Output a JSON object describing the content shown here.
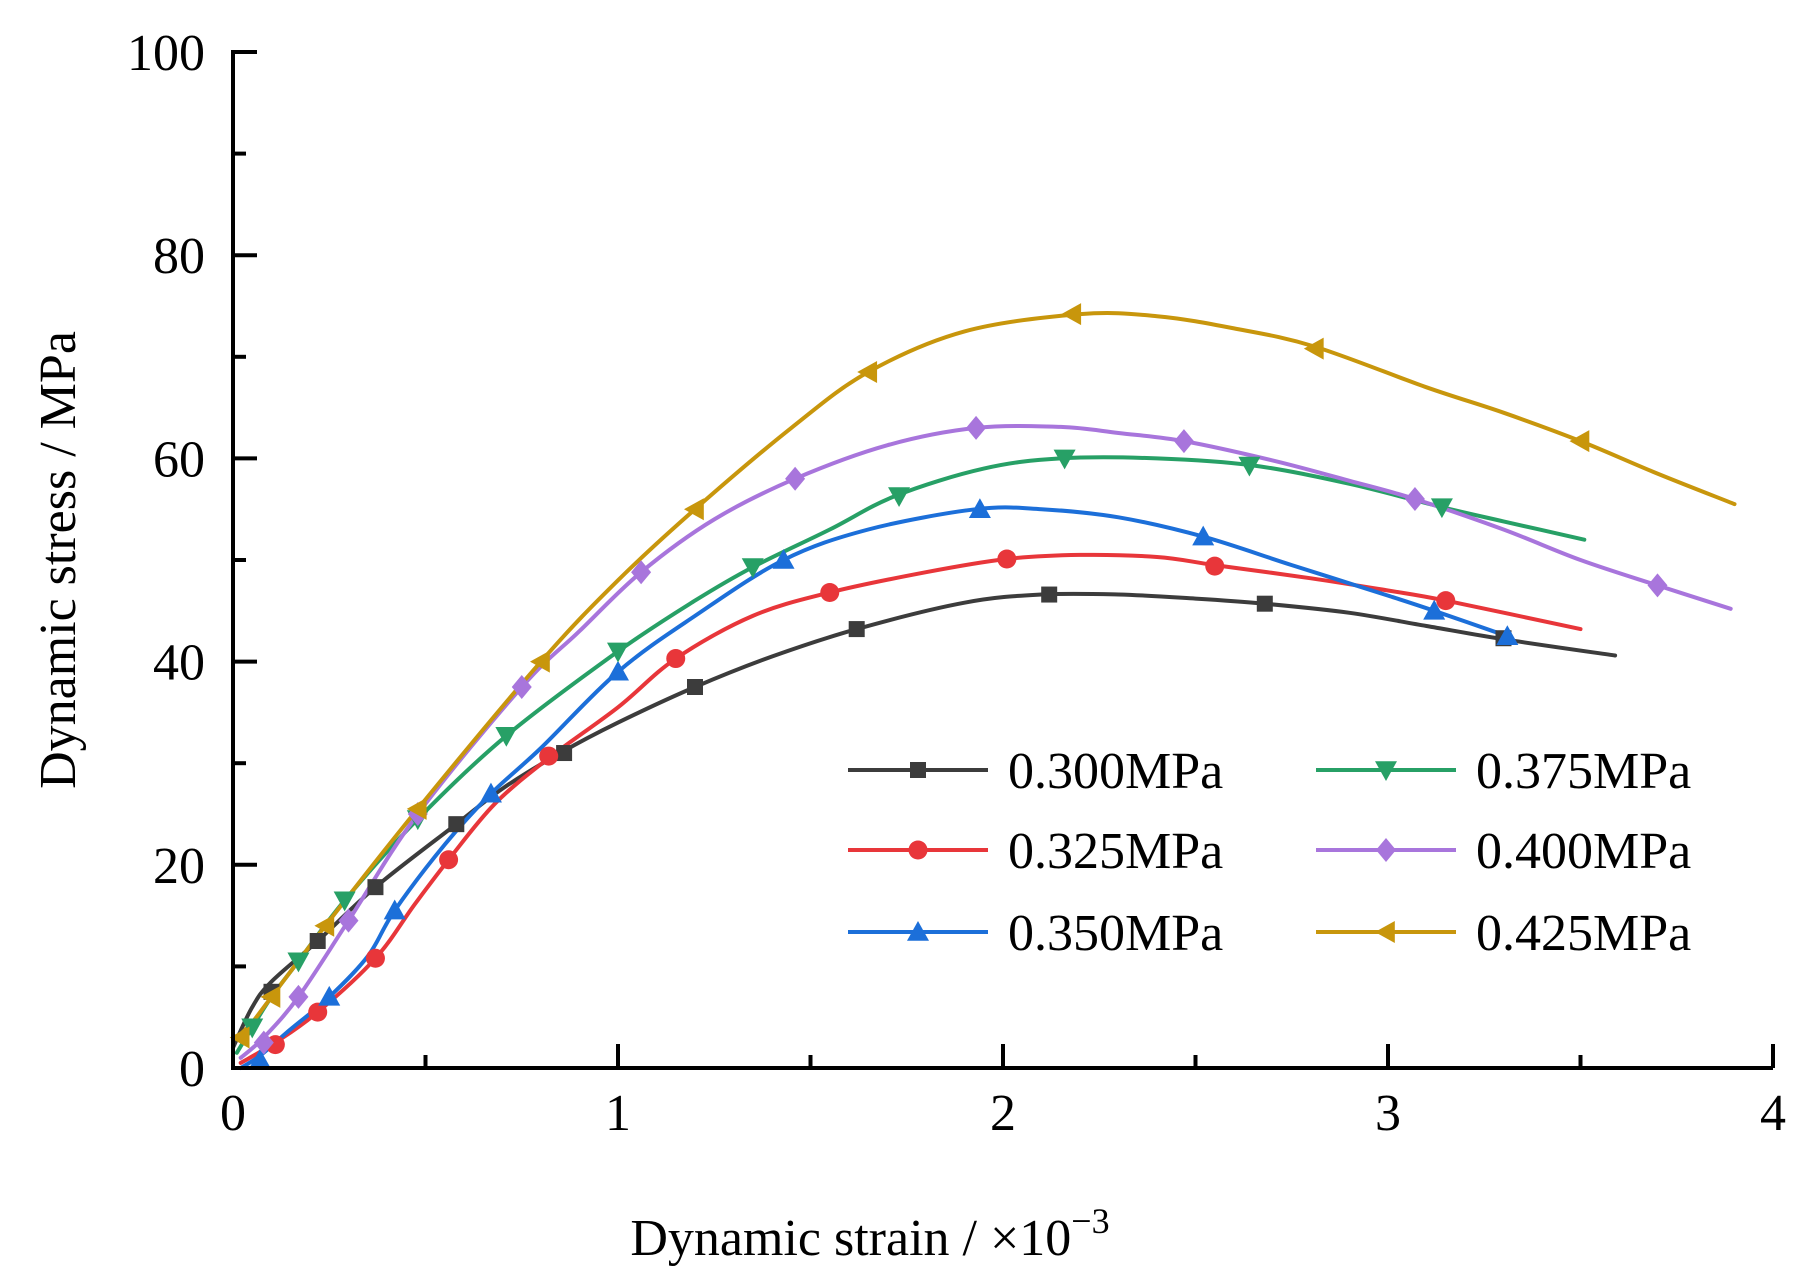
{
  "chart_data": {
    "type": "line",
    "title": "",
    "xlabel": "Dynamic strain / ×10",
    "xlabel_exponent": "−3",
    "ylabel": "Dynamic stress / MPa",
    "xlim": [
      0,
      4
    ],
    "ylim": [
      0,
      100
    ],
    "x_ticks": [
      "0",
      "1",
      "2",
      "3",
      "4"
    ],
    "y_ticks": [
      "0",
      "20",
      "40",
      "60",
      "80",
      "100"
    ],
    "grid": false,
    "legend_position": "lower-right",
    "series": [
      {
        "name": "0.300MPa",
        "color": "#3c3c3c",
        "marker": "square",
        "curve": [
          [
            0,
            2
          ],
          [
            0.05,
            6
          ],
          [
            0.1,
            8.5
          ],
          [
            0.22,
            12.5
          ],
          [
            0.37,
            17.8
          ],
          [
            0.58,
            24
          ],
          [
            0.7,
            27.5
          ],
          [
            0.85,
            31
          ],
          [
            1.0,
            34
          ],
          [
            1.2,
            37.5
          ],
          [
            1.4,
            40.5
          ],
          [
            1.62,
            43.2
          ],
          [
            1.9,
            45.8
          ],
          [
            2.1,
            46.6
          ],
          [
            2.3,
            46.6
          ],
          [
            2.5,
            46.2
          ],
          [
            2.68,
            45.7
          ],
          [
            2.9,
            44.8
          ],
          [
            3.1,
            43.5
          ],
          [
            3.3,
            42.2
          ],
          [
            3.59,
            40.6
          ]
        ],
        "markers": [
          [
            0.1,
            7.5
          ],
          [
            0.22,
            12.5
          ],
          [
            0.37,
            17.8
          ],
          [
            0.58,
            24
          ],
          [
            0.86,
            31
          ],
          [
            1.2,
            37.5
          ],
          [
            1.62,
            43.2
          ],
          [
            2.12,
            46.6
          ],
          [
            2.68,
            45.7
          ],
          [
            3.3,
            42.3
          ]
        ]
      },
      {
        "name": "0.325MPa",
        "color": "#e8363a",
        "marker": "circle",
        "curve": [
          [
            0.02,
            0.5
          ],
          [
            0.11,
            2.5
          ],
          [
            0.22,
            5.5
          ],
          [
            0.37,
            10.8
          ],
          [
            0.47,
            16
          ],
          [
            0.56,
            20.5
          ],
          [
            0.68,
            26
          ],
          [
            0.82,
            30.5
          ],
          [
            1.0,
            35.5
          ],
          [
            1.15,
            40.3
          ],
          [
            1.35,
            44.5
          ],
          [
            1.55,
            46.8
          ],
          [
            1.8,
            48.8
          ],
          [
            2.01,
            50.1
          ],
          [
            2.2,
            50.5
          ],
          [
            2.4,
            50.3
          ],
          [
            2.55,
            49.5
          ],
          [
            2.8,
            48.2
          ],
          [
            3.0,
            47
          ],
          [
            3.15,
            46
          ],
          [
            3.5,
            43.2
          ]
        ],
        "markers": [
          [
            0.11,
            2.3
          ],
          [
            0.22,
            5.5
          ],
          [
            0.37,
            10.8
          ],
          [
            0.56,
            20.5
          ],
          [
            0.82,
            30.7
          ],
          [
            1.15,
            40.3
          ],
          [
            1.55,
            46.8
          ],
          [
            2.01,
            50.1
          ],
          [
            2.55,
            49.4
          ],
          [
            3.15,
            46
          ]
        ]
      },
      {
        "name": "0.350MPa",
        "color": "#1c6fd9",
        "marker": "triangle-up",
        "curve": [
          [
            0.02,
            0
          ],
          [
            0.07,
            1.2
          ],
          [
            0.14,
            3.5
          ],
          [
            0.25,
            7
          ],
          [
            0.35,
            11
          ],
          [
            0.42,
            15.5
          ],
          [
            0.55,
            22
          ],
          [
            0.67,
            27
          ],
          [
            0.8,
            31.5
          ],
          [
            1.0,
            39
          ],
          [
            1.2,
            44.5
          ],
          [
            1.43,
            50
          ],
          [
            1.65,
            53
          ],
          [
            1.93,
            55
          ],
          [
            2.1,
            55
          ],
          [
            2.3,
            54.2
          ],
          [
            2.52,
            52.3
          ],
          [
            2.75,
            49.5
          ],
          [
            3.0,
            46.5
          ],
          [
            3.12,
            45
          ],
          [
            3.31,
            42.5
          ]
        ],
        "markers": [
          [
            0.07,
            0.8
          ],
          [
            0.25,
            7
          ],
          [
            0.42,
            15.5
          ],
          [
            0.67,
            27
          ],
          [
            1.0,
            39
          ],
          [
            1.43,
            50
          ],
          [
            1.94,
            55
          ],
          [
            2.52,
            52.3
          ],
          [
            3.12,
            45
          ],
          [
            3.31,
            42.5
          ]
        ]
      },
      {
        "name": "0.375MPa",
        "color": "#27a066",
        "marker": "triangle-down",
        "curve": [
          [
            0.01,
            1.5
          ],
          [
            0.05,
            4
          ],
          [
            0.1,
            7
          ],
          [
            0.17,
            10.5
          ],
          [
            0.29,
            16.5
          ],
          [
            0.48,
            24.5
          ],
          [
            0.71,
            32.7
          ],
          [
            1.0,
            41
          ],
          [
            1.2,
            46
          ],
          [
            1.35,
            49.3
          ],
          [
            1.55,
            53
          ],
          [
            1.72,
            56.3
          ],
          [
            1.95,
            59
          ],
          [
            2.15,
            60
          ],
          [
            2.4,
            60
          ],
          [
            2.65,
            59.3
          ],
          [
            2.9,
            57.5
          ],
          [
            3.14,
            55.2
          ],
          [
            3.3,
            53.8
          ],
          [
            3.51,
            52
          ]
        ],
        "markers": [
          [
            0.05,
            4
          ],
          [
            0.17,
            10.5
          ],
          [
            0.29,
            16.5
          ],
          [
            0.48,
            24.5
          ],
          [
            0.71,
            32.7
          ],
          [
            1.0,
            41
          ],
          [
            1.35,
            49.3
          ],
          [
            1.73,
            56.3
          ],
          [
            2.16,
            60
          ],
          [
            2.64,
            59.3
          ],
          [
            3.14,
            55.2
          ]
        ]
      },
      {
        "name": "0.400MPa",
        "color": "#a875dc",
        "marker": "diamond",
        "curve": [
          [
            0.02,
            1
          ],
          [
            0.08,
            3
          ],
          [
            0.17,
            7
          ],
          [
            0.3,
            14.5
          ],
          [
            0.48,
            25
          ],
          [
            0.75,
            37.5
          ],
          [
            0.9,
            43
          ],
          [
            1.06,
            48.8
          ],
          [
            1.25,
            54
          ],
          [
            1.46,
            58
          ],
          [
            1.7,
            61.3
          ],
          [
            1.93,
            63
          ],
          [
            2.15,
            63.1
          ],
          [
            2.3,
            62.5
          ],
          [
            2.47,
            61.7
          ],
          [
            2.7,
            59.8
          ],
          [
            2.9,
            57.8
          ],
          [
            3.07,
            56
          ],
          [
            3.3,
            53
          ],
          [
            3.5,
            50
          ],
          [
            3.7,
            47.5
          ],
          [
            3.89,
            45.2
          ]
        ],
        "markers": [
          [
            0.08,
            2.5
          ],
          [
            0.17,
            7
          ],
          [
            0.3,
            14.5
          ],
          [
            0.48,
            25
          ],
          [
            0.75,
            37.5
          ],
          [
            1.06,
            48.8
          ],
          [
            1.46,
            58
          ],
          [
            1.93,
            63
          ],
          [
            2.47,
            61.7
          ],
          [
            3.07,
            56
          ],
          [
            3.7,
            47.5
          ]
        ]
      },
      {
        "name": "0.425MPa",
        "color": "#c8960c",
        "marker": "triangle-left",
        "curve": [
          [
            0.01,
            3
          ],
          [
            0.05,
            4.5
          ],
          [
            0.1,
            7
          ],
          [
            0.24,
            14
          ],
          [
            0.48,
            25.5
          ],
          [
            0.8,
            40
          ],
          [
            1.0,
            48
          ],
          [
            1.2,
            55
          ],
          [
            1.45,
            63
          ],
          [
            1.65,
            68.5
          ],
          [
            1.9,
            72.5
          ],
          [
            2.2,
            74.2
          ],
          [
            2.4,
            74
          ],
          [
            2.6,
            72.8
          ],
          [
            2.81,
            71
          ],
          [
            3.1,
            67
          ],
          [
            3.3,
            64.5
          ],
          [
            3.5,
            61.7
          ],
          [
            3.7,
            58.5
          ],
          [
            3.9,
            55.5
          ]
        ],
        "markers": [
          [
            0.02,
            3
          ],
          [
            0.1,
            7
          ],
          [
            0.24,
            14
          ],
          [
            0.48,
            25.5
          ],
          [
            0.8,
            40
          ],
          [
            1.2,
            55
          ],
          [
            1.65,
            68.5
          ],
          [
            2.18,
            74.2
          ],
          [
            2.81,
            70.8
          ],
          [
            3.5,
            61.7
          ]
        ]
      }
    ]
  }
}
